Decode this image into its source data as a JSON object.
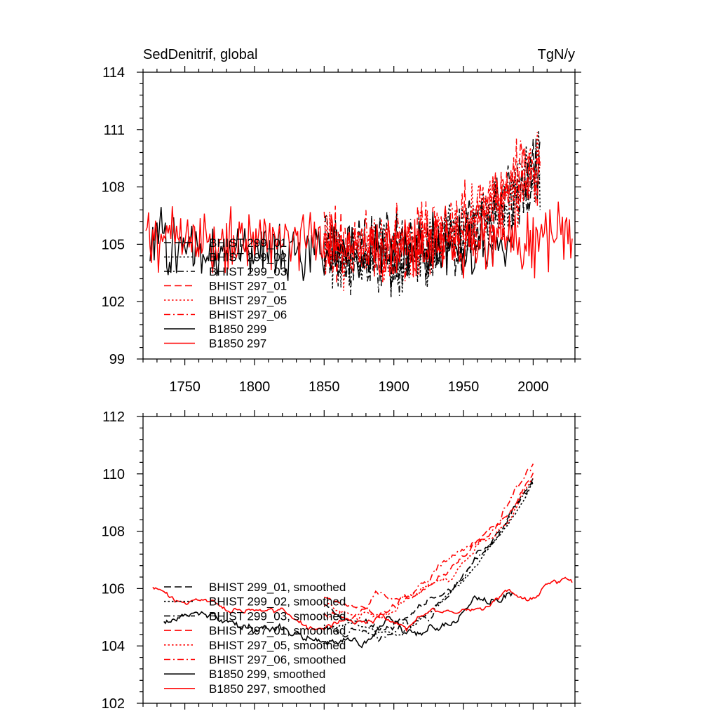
{
  "chart_data": [
    {
      "type": "line",
      "title_left": "SedDenitrif, global",
      "title_right": "TgN/y",
      "xlim": [
        1720,
        2030
      ],
      "ylim": [
        99,
        114
      ],
      "x_ticks": [
        1750,
        1800,
        1850,
        1900,
        1950,
        2000
      ],
      "x_tick_labels": [
        "1750",
        "1800",
        "1850",
        "1900",
        "1950",
        "2000"
      ],
      "y_ticks": [
        99,
        102,
        105,
        108,
        111,
        114
      ],
      "y_tick_labels": [
        "99",
        "102",
        "105",
        "108",
        "111",
        "114"
      ],
      "series": [
        {
          "name": "BHIST 299_01",
          "color": "#000000",
          "dash": "dash",
          "x_range": [
            1850,
            2005
          ],
          "start": 105.0,
          "mid": 105.0,
          "end": 108.8,
          "amp": 2.2,
          "seed": 11
        },
        {
          "name": "BHIST 299_02",
          "color": "#000000",
          "dash": "dot",
          "x_range": [
            1850,
            2005
          ],
          "start": 104.9,
          "mid": 104.9,
          "end": 109.0,
          "amp": 2.2,
          "seed": 12
        },
        {
          "name": "BHIST 299_03",
          "color": "#000000",
          "dash": "dashdot",
          "x_range": [
            1850,
            2005
          ],
          "start": 104.8,
          "mid": 104.8,
          "end": 108.9,
          "amp": 2.2,
          "seed": 13
        },
        {
          "name": "BHIST 297_01",
          "color": "#ff0000",
          "dash": "dash",
          "x_range": [
            1850,
            2005
          ],
          "start": 105.2,
          "mid": 105.4,
          "end": 109.3,
          "amp": 2.3,
          "seed": 14
        },
        {
          "name": "BHIST 297_05",
          "color": "#ff0000",
          "dash": "dot",
          "x_range": [
            1850,
            2005
          ],
          "start": 105.1,
          "mid": 105.3,
          "end": 109.2,
          "amp": 2.3,
          "seed": 15
        },
        {
          "name": "BHIST 297_06",
          "color": "#ff0000",
          "dash": "dashdot",
          "x_range": [
            1850,
            2005
          ],
          "start": 105.3,
          "mid": 105.5,
          "end": 109.4,
          "amp": 2.3,
          "seed": 16
        },
        {
          "name": "B1850 299",
          "color": "#000000",
          "dash": "solid",
          "x_range": [
            1725,
            1985
          ],
          "start": 105.0,
          "mid": 104.6,
          "end": 105.0,
          "amp": 2.0,
          "seed": 17
        },
        {
          "name": "B1850 297",
          "color": "#ff0000",
          "dash": "solid",
          "x_range": [
            1722,
            2028
          ],
          "start": 105.8,
          "mid": 105.0,
          "end": 105.6,
          "amp": 2.2,
          "seed": 18
        }
      ]
    },
    {
      "type": "line",
      "xlim": [
        1720,
        2030
      ],
      "ylim": [
        102,
        112
      ],
      "x_ticks": [
        1750,
        1800,
        1850,
        1900,
        1950,
        2000
      ],
      "y_ticks": [
        102,
        104,
        106,
        108,
        110,
        112
      ],
      "y_tick_labels": [
        "102",
        "104",
        "106",
        "108",
        "110",
        "112"
      ],
      "series": [
        {
          "name": "BHIST 299_01, smoothed",
          "color": "#000000",
          "dash": "dash",
          "x_range": [
            1850,
            2000
          ],
          "start": 105.0,
          "mid": 105.6,
          "end": 109.8,
          "amp": 0.45,
          "seed": 21
        },
        {
          "name": "BHIST 299_02, smoothed",
          "color": "#000000",
          "dash": "dot",
          "x_range": [
            1850,
            2000
          ],
          "start": 104.8,
          "mid": 105.3,
          "end": 109.6,
          "amp": 0.45,
          "seed": 22
        },
        {
          "name": "BHIST 299_03, smoothed",
          "color": "#000000",
          "dash": "dashdot",
          "x_range": [
            1850,
            2000
          ],
          "start": 104.6,
          "mid": 105.0,
          "end": 109.9,
          "amp": 0.45,
          "seed": 23
        },
        {
          "name": "BHIST 297_01, smoothed",
          "color": "#ff0000",
          "dash": "dash",
          "x_range": [
            1850,
            2000
          ],
          "start": 105.2,
          "mid": 106.2,
          "end": 110.1,
          "amp": 0.5,
          "seed": 24
        },
        {
          "name": "BHIST 297_05, smoothed",
          "color": "#ff0000",
          "dash": "dot",
          "x_range": [
            1850,
            2000
          ],
          "start": 105.0,
          "mid": 105.9,
          "end": 109.8,
          "amp": 0.5,
          "seed": 25
        },
        {
          "name": "BHIST 297_06, smoothed",
          "color": "#ff0000",
          "dash": "dashdot",
          "x_range": [
            1850,
            2000
          ],
          "start": 105.4,
          "mid": 106.4,
          "end": 110.2,
          "amp": 0.5,
          "seed": 26
        },
        {
          "name": "B1850 299, smoothed",
          "color": "#000000",
          "dash": "solid",
          "x_range": [
            1735,
            1985
          ],
          "start": 105.0,
          "mid": 104.4,
          "end": 105.6,
          "amp": 0.55,
          "seed": 27
        },
        {
          "name": "B1850 297, smoothed",
          "color": "#ff0000",
          "dash": "solid",
          "x_range": [
            1727,
            2028
          ],
          "start": 105.8,
          "mid": 104.9,
          "end": 106.1,
          "amp": 0.45,
          "seed": 28
        }
      ]
    }
  ]
}
